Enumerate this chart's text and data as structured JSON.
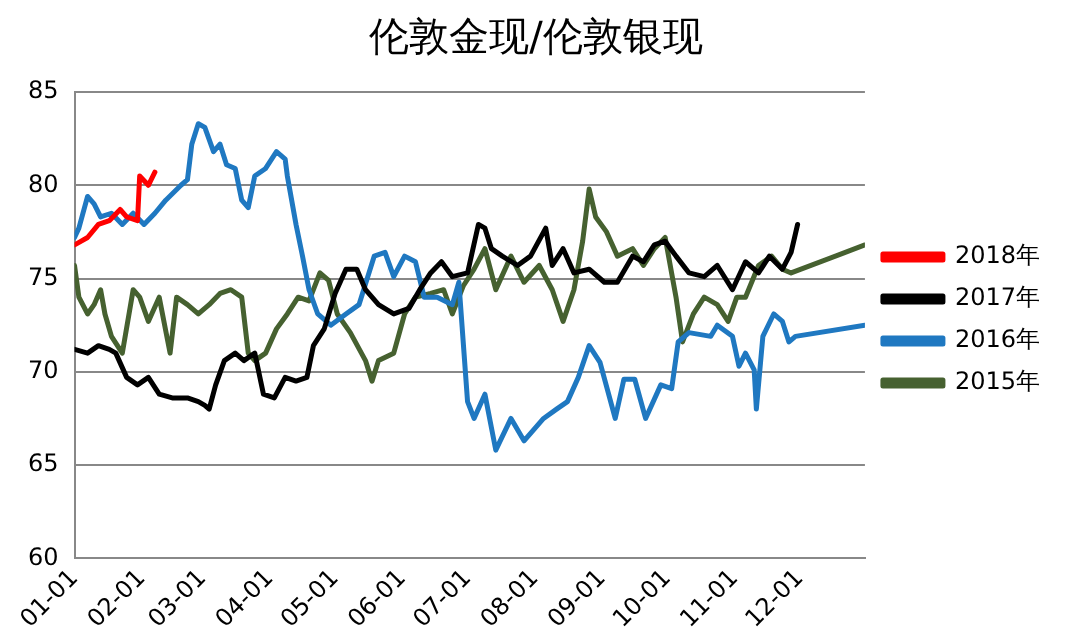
{
  "chart_data": {
    "type": "line",
    "title": "伦敦金现/伦敦银现",
    "xlim": [
      "--01-01",
      "--12-31"
    ],
    "xticks": [
      {
        "value": "--01-01",
        "label": "01-01"
      },
      {
        "value": "--02-01",
        "label": "02-01"
      },
      {
        "value": "--03-01",
        "label": "03-01"
      },
      {
        "value": "--04-01",
        "label": "04-01"
      },
      {
        "value": "--05-01",
        "label": "05-01"
      },
      {
        "value": "--06-01",
        "label": "06-01"
      },
      {
        "value": "--07-01",
        "label": "07-01"
      },
      {
        "value": "--08-01",
        "label": "08-01"
      },
      {
        "value": "--09-01",
        "label": "09-01"
      },
      {
        "value": "--10-01",
        "label": "10-01"
      },
      {
        "value": "--11-01",
        "label": "11-01"
      },
      {
        "value": "--12-01",
        "label": "12-01"
      }
    ],
    "ylim": [
      60,
      85
    ],
    "yticks": [
      60,
      65,
      70,
      75,
      80,
      85
    ],
    "grid": "y",
    "legend": "right",
    "marker": "none",
    "line_style": "solid",
    "series": [
      {
        "name": "2018年",
        "color": "#ff0000",
        "x": [
          "--01-01",
          "--01-07",
          "--01-12",
          "--01-17",
          "--01-22",
          "--01-25",
          "--01-30",
          "--01-31",
          "--02-04",
          "--02-07"
        ],
        "values": [
          76.8,
          77.2,
          77.9,
          78.1,
          78.7,
          78.3,
          78.1,
          80.5,
          80,
          80.7
        ]
      },
      {
        "name": "2017年",
        "color": "#000000",
        "x": [
          "--01-01",
          "--01-07",
          "--01-12",
          "--01-17",
          "--01-20",
          "--01-25",
          "--01-30",
          "--02-04",
          "--02-09",
          "--02-15",
          "--02-22",
          "--02-27",
          "--03-02",
          "--03-04",
          "--03-07",
          "--03-11",
          "--03-16",
          "--03-20",
          "--03-25",
          "--03-29",
          "--04-03",
          "--04-08",
          "--04-13",
          "--04-18",
          "--04-21",
          "--04-26",
          "--05-01",
          "--05-06",
          "--05-11",
          "--05-15",
          "--05-21",
          "--05-28",
          "--06-04",
          "--06-09",
          "--06-14",
          "--06-19",
          "--06-24",
          "--07-01",
          "--07-06",
          "--07-09",
          "--07-12",
          "--07-17",
          "--07-24",
          "--07-30",
          "--08-06",
          "--08-09",
          "--08-14",
          "--08-19",
          "--08-26",
          "--09-02",
          "--09-08",
          "--09-15",
          "--09-20",
          "--09-25",
          "--09-30",
          "--10-05",
          "--10-11",
          "--10-18",
          "--10-24",
          "--10-31",
          "--11-06",
          "--11-12",
          "--11-17",
          "--11-23",
          "--11-27",
          "--11-30"
        ],
        "values": [
          71.2,
          71,
          71.4,
          71.2,
          71,
          69.7,
          69.3,
          69.7,
          68.8,
          68.6,
          68.6,
          68.4,
          68.2,
          68,
          69.3,
          70.6,
          71,
          70.6,
          71,
          68.8,
          68.6,
          69.7,
          69.5,
          69.7,
          71.4,
          72.3,
          74.2,
          75.5,
          75.5,
          74.4,
          73.6,
          73.1,
          73.4,
          74.4,
          75.3,
          75.9,
          75.1,
          75.3,
          77.9,
          77.7,
          76.6,
          76.2,
          75.7,
          76.2,
          77.7,
          75.7,
          76.6,
          75.3,
          75.5,
          74.8,
          74.8,
          76.2,
          75.9,
          76.8,
          77,
          76.2,
          75.3,
          75.1,
          75.7,
          74.4,
          75.9,
          75.3,
          76.2,
          75.5,
          76.4,
          77.9
        ]
      },
      {
        "name": "2016年",
        "color": "#1f78c1",
        "x": [
          "--01-01",
          "--01-03",
          "--01-07",
          "--01-10",
          "--01-13",
          "--01-18",
          "--01-23",
          "--01-28",
          "--02-02",
          "--02-07",
          "--02-12",
          "--02-19",
          "--02-22",
          "--02-24",
          "--02-27",
          "--03-02",
          "--03-06",
          "--03-09",
          "--03-12",
          "--03-16",
          "--03-19",
          "--03-22",
          "--03-25",
          "--03-30",
          "--04-04",
          "--04-08",
          "--04-09",
          "--04-13",
          "--04-16",
          "--04-19",
          "--04-23",
          "--04-29",
          "--05-06",
          "--05-12",
          "--05-19",
          "--05-24",
          "--05-28",
          "--06-02",
          "--06-07",
          "--06-11",
          "--06-17",
          "--06-24",
          "--06-27",
          "--07-01",
          "--07-04",
          "--07-09",
          "--07-14",
          "--07-21",
          "--07-27",
          "--08-05",
          "--08-11",
          "--08-16",
          "--08-21",
          "--08-26",
          "--08-31",
          "--09-07",
          "--09-11",
          "--09-16",
          "--09-21",
          "--09-28",
          "--10-03",
          "--10-06",
          "--10-11",
          "--10-21",
          "--10-24",
          "--10-31",
          "--11-03",
          "--11-06",
          "--11-10",
          "--11-11",
          "--11-14",
          "--11-19",
          "--11-23",
          "--11-26",
          "--11-29",
          "--12-31"
        ],
        "values": [
          77.2,
          77.7,
          79.4,
          79,
          78.3,
          78.5,
          77.9,
          78.5,
          77.9,
          78.5,
          79.2,
          80,
          80.3,
          82.2,
          83.3,
          83.1,
          81.8,
          82.2,
          81.1,
          80.9,
          79.2,
          78.8,
          80.5,
          80.9,
          81.8,
          81.4,
          80.5,
          77.9,
          76.2,
          74.4,
          73.1,
          72.5,
          73.1,
          73.6,
          76.2,
          76.4,
          75.1,
          76.2,
          75.9,
          74,
          74,
          73.6,
          74.8,
          68.4,
          67.5,
          68.8,
          65.8,
          67.5,
          66.3,
          67.5,
          68,
          68.4,
          69.7,
          71.4,
          70.5,
          67.5,
          69.6,
          69.6,
          67.5,
          69.3,
          69.1,
          71.6,
          72.1,
          71.9,
          72.5,
          71.9,
          70.3,
          71,
          70.1,
          68,
          71.9,
          73.1,
          72.7,
          71.6,
          71.9,
          72.5
        ]
      },
      {
        "name": "2015年",
        "color": "#466130",
        "x": [
          "--01-01",
          "--01-03",
          "--01-07",
          "--01-10",
          "--01-13",
          "--01-15",
          "--01-18",
          "--01-23",
          "--01-28",
          "--01-31",
          "--02-04",
          "--02-09",
          "--02-14",
          "--02-17",
          "--02-22",
          "--02-27",
          "--03-04",
          "--03-09",
          "--03-14",
          "--03-19",
          "--03-22",
          "--03-25",
          "--03-30",
          "--04-04",
          "--04-09",
          "--04-14",
          "--04-19",
          "--04-24",
          "--04-28",
          "--05-02",
          "--05-08",
          "--05-15",
          "--05-18",
          "--05-21",
          "--05-28",
          "--06-02",
          "--06-07",
          "--06-14",
          "--06-20",
          "--06-24",
          "--06-29",
          "--07-04",
          "--07-09",
          "--07-14",
          "--07-21",
          "--07-27",
          "--08-03",
          "--08-09",
          "--08-14",
          "--08-19",
          "--08-23",
          "--08-26",
          "--08-29",
          "--09-03",
          "--09-08",
          "--09-15",
          "--09-20",
          "--09-25",
          "--09-30",
          "--10-05",
          "--10-08",
          "--10-13",
          "--10-18",
          "--10-24",
          "--10-29",
          "--11-02",
          "--11-06",
          "--11-12",
          "--11-18",
          "--11-23",
          "--11-27",
          "--12-31"
        ],
        "values": [
          75.7,
          74,
          73.1,
          73.6,
          74.4,
          73.1,
          71.9,
          71,
          74.4,
          74,
          72.7,
          74,
          71,
          74,
          73.6,
          73.1,
          73.6,
          74.2,
          74.4,
          74,
          71,
          70.6,
          71,
          72.3,
          73.1,
          74,
          73.8,
          75.3,
          74.9,
          73.1,
          72.1,
          70.6,
          69.5,
          70.6,
          71,
          73.1,
          74,
          74.2,
          74.4,
          73.1,
          74.6,
          75.5,
          76.6,
          74.4,
          76.2,
          74.8,
          75.7,
          74.4,
          72.7,
          74.4,
          77,
          79.8,
          78.3,
          77.5,
          76.2,
          76.6,
          75.7,
          76.6,
          77.2,
          74,
          71.6,
          73.1,
          74,
          73.6,
          72.7,
          74,
          74,
          75.7,
          76.2,
          75.5,
          75.3,
          76.8
        ]
      }
    ]
  }
}
